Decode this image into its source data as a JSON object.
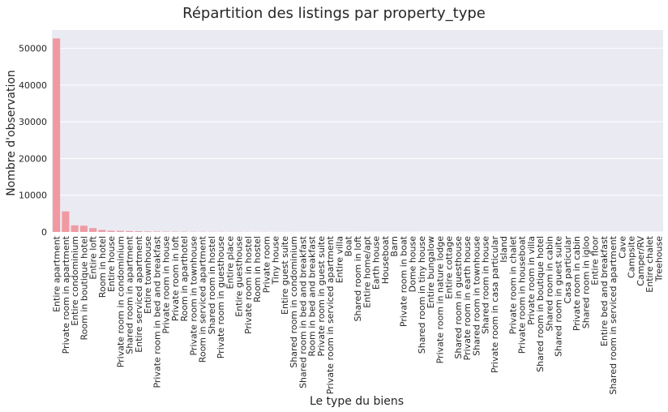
{
  "chart_data": {
    "type": "bar",
    "title": "Répartition des listings par property_type",
    "xlabel": "Le type du biens",
    "ylabel": "Nombre d'observation",
    "ylim": [
      0,
      55000
    ],
    "yticks": [
      0,
      10000,
      20000,
      30000,
      40000,
      50000
    ],
    "grid": true,
    "palette": "gradient from pink to blue",
    "categories": [
      "Entire apartment",
      "Private room in apartment",
      "Entire condominium",
      "Room in boutique hotel",
      "Entire loft",
      "Room in hotel",
      "Entire house",
      "Private room in condominium",
      "Shared room in apartment",
      "Entire serviced apartment",
      "Entire townhouse",
      "Private room in bed and breakfast",
      "Private room in house",
      "Private room in loft",
      "Room in aparthotel",
      "Private room in townhouse",
      "Room in serviced apartment",
      "Shared room in hostel",
      "Private room in guesthouse",
      "Entire place",
      "Entire guesthouse",
      "Private room in hostel",
      "Room in hostel",
      "Private room",
      "Tiny house",
      "Entire guest suite",
      "Shared room in condominium",
      "Shared room in bed and breakfast",
      "Room in bed and breakfast",
      "Private room in guest suite",
      "Private room in serviced apartment",
      "Entire villa",
      "Boat",
      "Shared room in loft",
      "Entire home/apt",
      "Earth house",
      "Houseboat",
      "Barn",
      "Private room in boat",
      "Dome house",
      "Shared room in tiny house",
      "Entire bungalow",
      "Private room in nature lodge",
      "Entire cottage",
      "Shared room in guesthouse",
      "Private room in earth house",
      "Shared room in townhouse",
      "Shared room in house",
      "Private room in casa particular",
      "Island",
      "Private room in chalet",
      "Private room in houseboat",
      "Private room in villa",
      "Shared room in boutique hotel",
      "Shared room in cabin",
      "Shared room in guest suite",
      "Casa particular",
      "Private room in cabin",
      "Shared room in igloo",
      "Entire floor",
      "Entire bed and breakfast",
      "Shared room in serviced apartment",
      "Cave",
      "Campsite",
      "Camper/RV",
      "Entire chalet",
      "Treehouse"
    ],
    "values": [
      52700,
      5600,
      1800,
      1700,
      1050,
      550,
      350,
      300,
      250,
      200,
      150,
      120,
      100,
      90,
      80,
      70,
      60,
      55,
      50,
      45,
      40,
      35,
      32,
      30,
      28,
      25,
      22,
      20,
      18,
      16,
      15,
      14,
      12,
      11,
      10,
      9,
      8,
      8,
      7,
      7,
      6,
      6,
      5,
      5,
      5,
      4,
      4,
      4,
      3,
      3,
      3,
      3,
      3,
      2,
      2,
      2,
      2,
      2,
      2,
      2,
      1,
      1,
      1,
      1,
      1,
      1,
      1
    ]
  }
}
